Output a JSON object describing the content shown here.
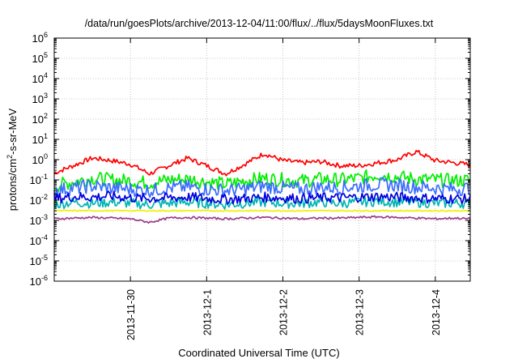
{
  "chart_data": {
    "type": "line",
    "title": "/data/run/goesPlots/archive/2013-12-04/11:00/flux/../flux/5daysMoonFluxes.txt",
    "xlabel": "Coordinated Universal Time (UTC)",
    "ylabel": "protons/cm²-s-sr-MeV",
    "yscale": "log",
    "ylim": [
      1e-06,
      1000000.0
    ],
    "y_ticks": [
      {
        "value": -6,
        "base": "10",
        "exp": "-6"
      },
      {
        "value": -5,
        "base": "10",
        "exp": "-5"
      },
      {
        "value": -4,
        "base": "10",
        "exp": "-4"
      },
      {
        "value": -3,
        "base": "10",
        "exp": "-3"
      },
      {
        "value": -2,
        "base": "10",
        "exp": "-2"
      },
      {
        "value": -1,
        "base": "10",
        "exp": "-1"
      },
      {
        "value": 0,
        "base": "10",
        "exp": "0"
      },
      {
        "value": 1,
        "base": "10",
        "exp": "1"
      },
      {
        "value": 2,
        "base": "10",
        "exp": "2"
      },
      {
        "value": 3,
        "base": "10",
        "exp": "3"
      },
      {
        "value": 4,
        "base": "10",
        "exp": "4"
      },
      {
        "value": 5,
        "base": "10",
        "exp": "5"
      },
      {
        "value": 6,
        "base": "10",
        "exp": "6"
      }
    ],
    "xlim": [
      "2013-11-29T00:00",
      "2013-12-04T11:00"
    ],
    "x_ticks": [
      "2013-11-30",
      "2013-12-1",
      "2013-12-2",
      "2013-12-3",
      "2013-12-4"
    ],
    "grid": true,
    "series": [
      {
        "color": "#ff0000",
        "x": [
          "2013-11-29T00:00",
          "2013-11-29T06:00",
          "2013-11-29T12:00",
          "2013-11-29T18:00",
          "2013-11-30T00:00",
          "2013-11-30T06:00",
          "2013-11-30T12:00",
          "2013-11-30T18:00",
          "2013-12-01T00:00",
          "2013-12-01T06:00",
          "2013-12-01T12:00",
          "2013-12-01T18:00",
          "2013-12-02T00:00",
          "2013-12-02T06:00",
          "2013-12-02T12:00",
          "2013-12-02T18:00",
          "2013-12-03T00:00",
          "2013-12-03T06:00",
          "2013-12-03T12:00",
          "2013-12-03T18:00",
          "2013-12-04T00:00",
          "2013-12-04T06:00",
          "2013-12-04T11:00"
        ],
        "y": [
          0.22,
          0.5,
          1.2,
          0.9,
          0.6,
          0.2,
          0.5,
          1.2,
          0.5,
          0.2,
          0.6,
          2.0,
          0.9,
          0.7,
          0.8,
          0.5,
          0.5,
          0.7,
          1.0,
          2.5,
          0.9,
          0.7,
          0.55
        ]
      },
      {
        "color": "#00ee00",
        "x": [
          "2013-11-29T00:00",
          "2013-11-29T06:00",
          "2013-11-29T12:00",
          "2013-11-29T18:00",
          "2013-11-30T00:00",
          "2013-11-30T06:00",
          "2013-11-30T12:00",
          "2013-11-30T18:00",
          "2013-12-01T00:00",
          "2013-12-01T06:00",
          "2013-12-01T12:00",
          "2013-12-01T18:00",
          "2013-12-02T00:00",
          "2013-12-02T06:00",
          "2013-12-02T12:00",
          "2013-12-02T18:00",
          "2013-12-03T00:00",
          "2013-12-03T06:00",
          "2013-12-03T12:00",
          "2013-12-03T18:00",
          "2013-12-04T00:00",
          "2013-12-04T06:00",
          "2013-12-04T11:00"
        ],
        "y": [
          0.05,
          0.08,
          0.12,
          0.1,
          0.09,
          0.07,
          0.1,
          0.11,
          0.08,
          0.06,
          0.09,
          0.12,
          0.1,
          0.09,
          0.11,
          0.1,
          0.12,
          0.18,
          0.14,
          0.11,
          0.1,
          0.09,
          0.1
        ]
      },
      {
        "color": "#00b4b4",
        "x": [
          "2013-11-29T00:00",
          "2013-11-29T06:00",
          "2013-11-29T12:00",
          "2013-11-29T18:00",
          "2013-11-30T00:00",
          "2013-11-30T06:00",
          "2013-11-30T12:00",
          "2013-11-30T18:00",
          "2013-12-01T00:00",
          "2013-12-01T06:00",
          "2013-12-01T12:00",
          "2013-12-01T18:00",
          "2013-12-02T00:00",
          "2013-12-02T06:00",
          "2013-12-02T12:00",
          "2013-12-02T18:00",
          "2013-12-03T00:00",
          "2013-12-03T06:00",
          "2013-12-03T12:00",
          "2013-12-03T18:00",
          "2013-12-04T00:00",
          "2013-12-04T06:00",
          "2013-12-04T11:00"
        ],
        "y": [
          0.006,
          0.008,
          0.007,
          0.008,
          0.007,
          0.006,
          0.007,
          0.008,
          0.007,
          0.006,
          0.007,
          0.008,
          0.007,
          0.007,
          0.008,
          0.007,
          0.008,
          0.009,
          0.008,
          0.008,
          0.007,
          0.007,
          0.007
        ]
      },
      {
        "color": "#3a6cff",
        "x": [
          "2013-11-29T00:00",
          "2013-11-29T06:00",
          "2013-11-29T12:00",
          "2013-11-29T18:00",
          "2013-11-30T00:00",
          "2013-11-30T06:00",
          "2013-11-30T12:00",
          "2013-11-30T18:00",
          "2013-12-01T00:00",
          "2013-12-01T06:00",
          "2013-12-01T12:00",
          "2013-12-01T18:00",
          "2013-12-02T00:00",
          "2013-12-02T06:00",
          "2013-12-02T12:00",
          "2013-12-02T18:00",
          "2013-12-03T00:00",
          "2013-12-03T06:00",
          "2013-12-03T12:00",
          "2013-12-03T18:00",
          "2013-12-04T00:00",
          "2013-12-04T06:00",
          "2013-12-04T11:00"
        ],
        "y": [
          0.03,
          0.04,
          0.05,
          0.04,
          0.035,
          0.03,
          0.04,
          0.045,
          0.035,
          0.03,
          0.035,
          0.05,
          0.04,
          0.035,
          0.045,
          0.04,
          0.05,
          0.06,
          0.055,
          0.045,
          0.04,
          0.035,
          0.04
        ]
      },
      {
        "color": "#0000dd",
        "x": [
          "2013-11-29T00:00",
          "2013-11-29T06:00",
          "2013-11-29T12:00",
          "2013-11-29T18:00",
          "2013-11-30T00:00",
          "2013-11-30T06:00",
          "2013-11-30T12:00",
          "2013-11-30T18:00",
          "2013-12-01T00:00",
          "2013-12-01T06:00",
          "2013-12-01T12:00",
          "2013-12-01T18:00",
          "2013-12-02T00:00",
          "2013-12-02T06:00",
          "2013-12-02T12:00",
          "2013-12-02T18:00",
          "2013-12-03T00:00",
          "2013-12-03T06:00",
          "2013-12-03T12:00",
          "2013-12-03T18:00",
          "2013-12-04T00:00",
          "2013-12-04T06:00",
          "2013-12-04T11:00"
        ],
        "y": [
          0.012,
          0.015,
          0.014,
          0.016,
          0.013,
          0.012,
          0.013,
          0.014,
          0.012,
          0.011,
          0.012,
          0.014,
          0.013,
          0.012,
          0.013,
          0.013,
          0.014,
          0.015,
          0.014,
          0.013,
          0.012,
          0.012,
          0.011
        ]
      },
      {
        "color": "#f0f000",
        "x": [
          "2013-11-29T00:00",
          "2013-11-30T00:00",
          "2013-12-01T00:00",
          "2013-12-02T00:00",
          "2013-12-03T00:00",
          "2013-12-04T00:00",
          "2013-12-04T11:00"
        ],
        "y": [
          0.003,
          0.003,
          0.003,
          0.003,
          0.003,
          0.003,
          0.003
        ]
      },
      {
        "color": "#9a3a8a",
        "x": [
          "2013-11-29T00:00",
          "2013-11-29T06:00",
          "2013-11-29T12:00",
          "2013-11-29T18:00",
          "2013-11-30T00:00",
          "2013-11-30T06:00",
          "2013-11-30T12:00",
          "2013-11-30T18:00",
          "2013-12-01T00:00",
          "2013-12-01T06:00",
          "2013-12-01T12:00",
          "2013-12-01T18:00",
          "2013-12-02T00:00",
          "2013-12-02T06:00",
          "2013-12-02T12:00",
          "2013-12-02T18:00",
          "2013-12-03T00:00",
          "2013-12-03T06:00",
          "2013-12-03T12:00",
          "2013-12-03T18:00",
          "2013-12-04T00:00",
          "2013-12-04T06:00",
          "2013-12-04T11:00"
        ],
        "y": [
          0.0012,
          0.0013,
          0.0014,
          0.0013,
          0.0012,
          0.0008,
          0.0013,
          0.0014,
          0.0013,
          0.0012,
          0.0013,
          0.0014,
          0.0013,
          0.0012,
          0.0013,
          0.0013,
          0.0014,
          0.0015,
          0.0014,
          0.0013,
          0.0012,
          0.0013,
          0.0012
        ]
      }
    ]
  }
}
